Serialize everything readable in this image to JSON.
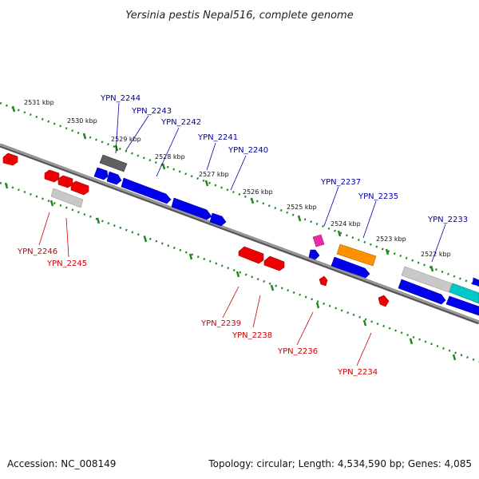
{
  "title": "Yersinia pestis Nepal516, complete genome",
  "footer": {
    "accession": "Accession: NC_008149",
    "topology": "Topology: circular; Length: 4,534,590 bp; Genes: 4,085"
  },
  "colors": {
    "axis": "#808080",
    "forward_gene": "#0000ee",
    "reverse_gene": "#ee0000",
    "grey_gene": "#b8b8b8",
    "dark_grey_gene": "#606060",
    "orange_gene": "#ff9000",
    "magenta_gene": "#ee2aa8",
    "cyan_gene": "#00c8c8",
    "scale_tick": "#228822",
    "forward_label": "#0000aa",
    "reverse_label": "#cc0000"
  },
  "kbp_labels": [
    "2531 kbp",
    "2530 kbp",
    "2529 kbp",
    "2528 kbp",
    "2527 kbp",
    "2526 kbp",
    "2525 kbp",
    "2524 kbp",
    "2523 kbp",
    "2522 kbp"
  ],
  "forward_labels": [
    "YPN_2244",
    "YPN_2243",
    "YPN_2242",
    "YPN_2241",
    "YPN_2240",
    "YPN_2237",
    "YPN_2235",
    "YPN_2233"
  ],
  "reverse_labels": [
    "YPN_2246",
    "YPN_2245",
    "YPN_2239",
    "YPN_2238",
    "YPN_2236",
    "YPN_2234"
  ]
}
